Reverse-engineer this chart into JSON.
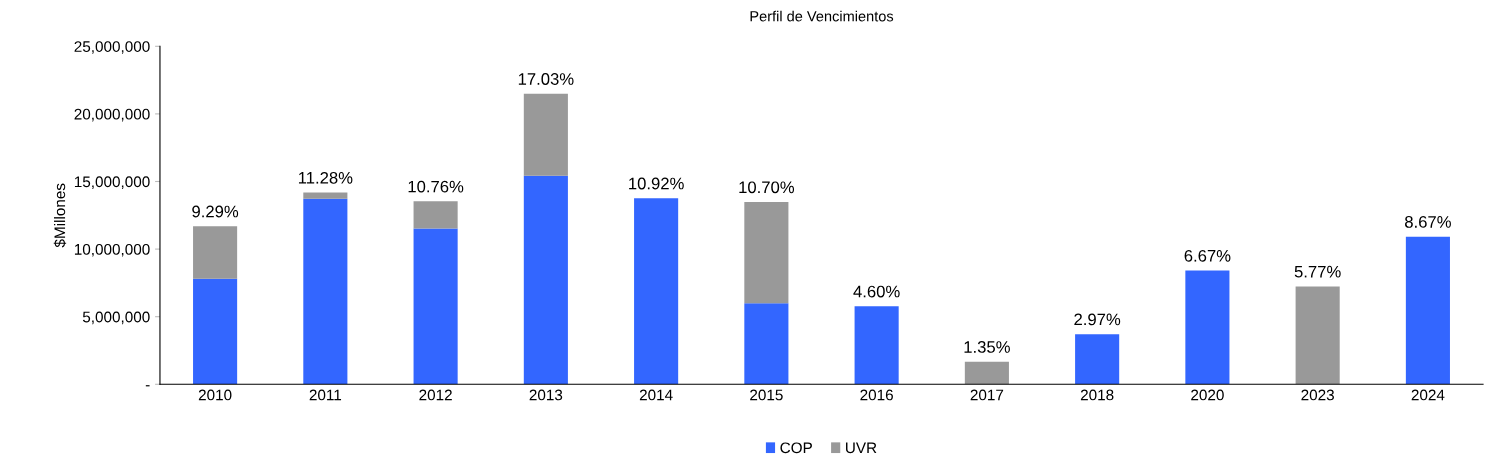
{
  "chart_data": {
    "type": "bar",
    "title": "Perfil de Vencimientos",
    "ylabel": "$Millones",
    "stacked": true,
    "categories": [
      "2010",
      "2011",
      "2012",
      "2013",
      "2014",
      "2015",
      "2016",
      "2017",
      "2018",
      "2020",
      "2023",
      "2024"
    ],
    "series": [
      {
        "name": "COP",
        "color": "#3366ff",
        "values": [
          7810000,
          13730000,
          11520000,
          15420000,
          13760000,
          6000000,
          5770000,
          null,
          3710000,
          8410000,
          null,
          10920000
        ]
      },
      {
        "name": "UVR",
        "color": "#999999",
        "values": [
          3880000,
          450000,
          2010000,
          6070000,
          null,
          7480000,
          null,
          1670000,
          null,
          null,
          7240000,
          null
        ]
      }
    ],
    "annotations": [
      {
        "text": "9.29%",
        "x": "2010",
        "y": 11690000
      },
      {
        "text": "11.28%",
        "x": "2011",
        "y": 14180000
      },
      {
        "text": "10.76%",
        "x": "2012",
        "y": 13530000
      },
      {
        "text": "17.03%",
        "x": "2013",
        "y": 21490000
      },
      {
        "text": "10.92%",
        "x": "2014",
        "y": 13760000
      },
      {
        "text": "10.70%",
        "x": "2015",
        "y": 13480000
      },
      {
        "text": "4.60%",
        "x": "2016",
        "y": 5770000
      },
      {
        "text": "1.35%",
        "x": "2017",
        "y": 1670000
      },
      {
        "text": "2.97%",
        "x": "2018",
        "y": 3710000
      },
      {
        "text": "6.67%",
        "x": "2020",
        "y": 8410000
      },
      {
        "text": "5.77%",
        "x": "2023",
        "y": 7240000
      },
      {
        "text": "8.67%",
        "x": "2024",
        "y": 10920000
      }
    ],
    "ylim": [
      0,
      25000000
    ],
    "yticks": [
      {
        "value": 0,
        "label": "-"
      },
      {
        "value": 5000000,
        "label": "5,000,000"
      },
      {
        "value": 10000000,
        "label": "10,000,000"
      },
      {
        "value": 15000000,
        "label": "15,000,000"
      },
      {
        "value": 20000000,
        "label": "20,000,000"
      },
      {
        "value": 25000000,
        "label": "25,000,000"
      }
    ],
    "grid": false,
    "legend": "bottom"
  }
}
